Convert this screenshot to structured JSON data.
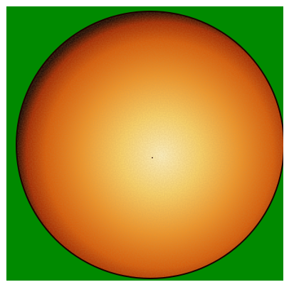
{
  "image": {
    "subject": "solar-disk",
    "colors": {
      "background": "#008a00",
      "frame": "#ffffff",
      "limb_edge": "#1a0400",
      "outer": "#a12600",
      "mid_outer": "#d75a08",
      "mid": "#f09428",
      "inner": "#fbd46a",
      "core": "#fff4c4"
    }
  }
}
